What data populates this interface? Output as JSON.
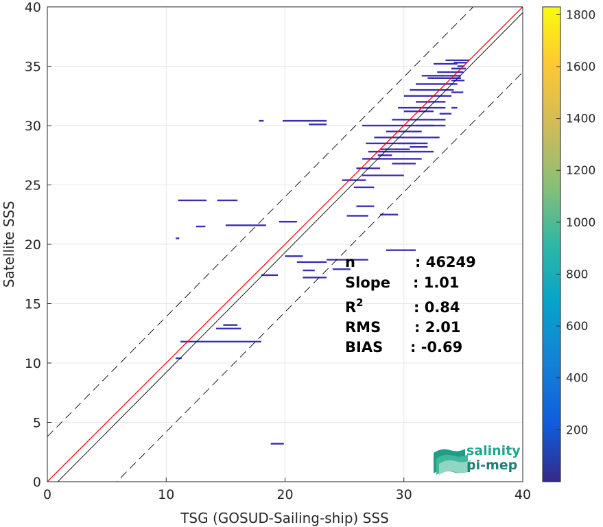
{
  "chart_data": {
    "type": "heatmap",
    "xlabel": "TSG (GOSUD-Sailing-ship) SSS",
    "ylabel": "Satellite SSS",
    "xlim": [
      0,
      40
    ],
    "ylim": [
      0,
      40
    ],
    "xticks": [
      0,
      10,
      20,
      30,
      40
    ],
    "yticks": [
      0,
      5,
      10,
      15,
      20,
      25,
      30,
      35,
      40
    ],
    "grid": true,
    "colorbar": {
      "range": [
        0,
        1830
      ],
      "ticks": [
        200,
        400,
        600,
        800,
        1000,
        1200,
        1400,
        1600,
        1800
      ],
      "colormap": "parula"
    },
    "lines": {
      "one_to_one": {
        "color": "#ff0000",
        "slope": 1,
        "intercept": 0
      },
      "regression": {
        "color": "#000000",
        "slope": 1.01,
        "intercept": -0.89
      },
      "dashed_upper": {
        "color": "#000000",
        "slope": 1.01,
        "intercept": 3.8
      },
      "dashed_lower": {
        "color": "#000000",
        "slope": 1.01,
        "intercept": -5.9
      }
    },
    "bins": [
      [
        11.0,
        23.7,
        13.4,
        23.7
      ],
      [
        14.3,
        23.7,
        16.0,
        23.7
      ],
      [
        12.5,
        21.5,
        13.3,
        21.5
      ],
      [
        15.0,
        21.6,
        18.4,
        21.6
      ],
      [
        19.5,
        21.9,
        21.0,
        21.9
      ],
      [
        10.8,
        20.5,
        11.1,
        20.5
      ],
      [
        17.8,
        30.4,
        18.2,
        30.4
      ],
      [
        19.8,
        30.4,
        23.5,
        30.4
      ],
      [
        22.0,
        30.1,
        23.5,
        30.1
      ],
      [
        18.0,
        17.4,
        19.4,
        17.4
      ],
      [
        20.0,
        19.0,
        21.5,
        19.0
      ],
      [
        21.0,
        18.5,
        23.5,
        18.5
      ],
      [
        23.5,
        18.7,
        27.0,
        18.7
      ],
      [
        28.5,
        19.5,
        31.0,
        19.5
      ],
      [
        21.5,
        17.8,
        22.5,
        17.8
      ],
      [
        21.5,
        17.2,
        23.5,
        17.2
      ],
      [
        24.0,
        17.9,
        25.5,
        17.9
      ],
      [
        14.2,
        12.9,
        16.3,
        12.9
      ],
      [
        14.8,
        13.2,
        16.0,
        13.2
      ],
      [
        11.2,
        11.8,
        18.0,
        11.8
      ],
      [
        10.8,
        10.4,
        11.3,
        10.4
      ],
      [
        18.8,
        3.2,
        19.9,
        3.2
      ],
      [
        25.2,
        22.4,
        27.0,
        22.4
      ],
      [
        28.0,
        22.5,
        29.5,
        22.5
      ],
      [
        24.8,
        25.4,
        26.8,
        25.4
      ],
      [
        25.8,
        24.8,
        27.5,
        24.8
      ],
      [
        26.0,
        26.4,
        28.0,
        26.4
      ],
      [
        26.5,
        25.8,
        30.0,
        25.8
      ],
      [
        26.5,
        27.2,
        31.5,
        27.2
      ],
      [
        27.0,
        27.8,
        32.5,
        27.8
      ],
      [
        26.8,
        28.5,
        31.0,
        28.5
      ],
      [
        27.5,
        29.0,
        33.0,
        29.0
      ],
      [
        26.5,
        30.0,
        33.5,
        30.0
      ],
      [
        28.5,
        29.5,
        31.5,
        29.5
      ],
      [
        29.0,
        30.5,
        32.0,
        30.5
      ],
      [
        29.5,
        31.5,
        33.5,
        31.5
      ],
      [
        30.0,
        32.5,
        34.0,
        32.5
      ],
      [
        30.5,
        33.0,
        34.2,
        33.0
      ],
      [
        31.0,
        33.5,
        34.5,
        33.5
      ],
      [
        32.0,
        34.0,
        34.8,
        34.0
      ],
      [
        32.8,
        34.5,
        35.0,
        34.5
      ],
      [
        32.5,
        35.2,
        34.5,
        35.2
      ],
      [
        34.0,
        34.8,
        35.2,
        34.8
      ],
      [
        31.5,
        34.2,
        33.5,
        34.2
      ],
      [
        30.0,
        31.2,
        32.5,
        31.2
      ],
      [
        31.0,
        32.0,
        33.5,
        32.0
      ],
      [
        26.0,
        23.2,
        27.5,
        23.2
      ],
      [
        30.5,
        28.2,
        32.0,
        28.2
      ],
      [
        29.0,
        26.8,
        31.0,
        26.8
      ],
      [
        28.0,
        28.0,
        30.5,
        28.0
      ],
      [
        33.0,
        31.0,
        34.0,
        31.0
      ],
      [
        34.2,
        35.3,
        35.3,
        35.3
      ],
      [
        34.5,
        35.0,
        35.1,
        35.0
      ],
      [
        33.5,
        34.2,
        34.8,
        34.2
      ],
      [
        34.0,
        32.8,
        35.0,
        32.8
      ],
      [
        34.0,
        33.8,
        35.1,
        33.8
      ],
      [
        34.0,
        34.8,
        35.2,
        34.8
      ],
      [
        33.5,
        35.5,
        35.5,
        35.5
      ],
      [
        34.0,
        31.5,
        34.5,
        31.5
      ],
      [
        32.0,
        30.5,
        33.5,
        30.5
      ],
      [
        31.0,
        30.0,
        32.5,
        30.0
      ],
      [
        29.5,
        28.5,
        32.0,
        28.5
      ],
      [
        27.8,
        27.5,
        29.0,
        27.5
      ]
    ],
    "stats": [
      {
        "label": "n",
        "value": ": 46249"
      },
      {
        "label": "Slope",
        "value": ": 1.01"
      },
      {
        "label": "R",
        "sup": "2",
        "value": ": 0.84"
      },
      {
        "label": "RMS",
        "value": ": 2.01"
      },
      {
        "label": "BIAS",
        "value": ": -0.69"
      }
    ]
  },
  "logo": {
    "line1": "salinity",
    "line2": "pi-mep"
  }
}
